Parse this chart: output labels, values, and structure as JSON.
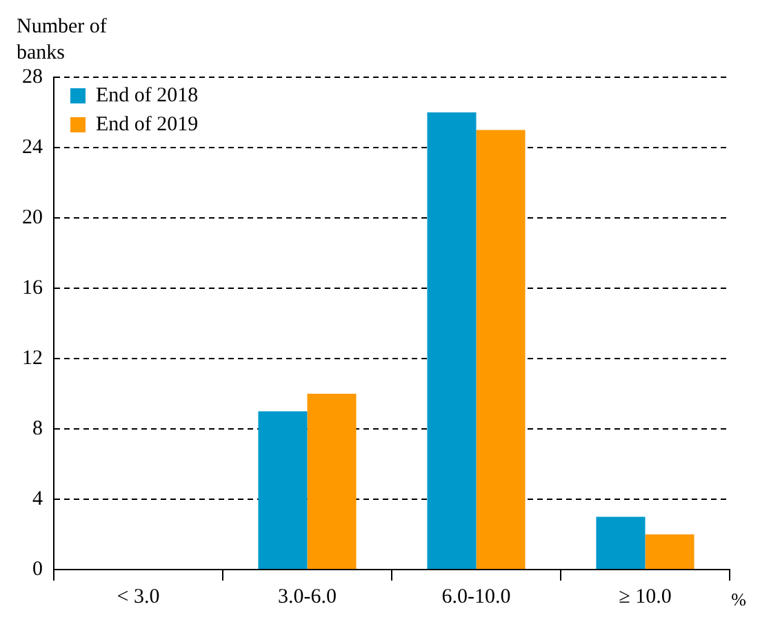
{
  "chart_data": {
    "type": "bar",
    "ylabel": "Number of\nbanks",
    "xlabel": "%",
    "categories": [
      "< 3.0",
      "3.0-6.0",
      "6.0-10.0",
      "≥ 10.0"
    ],
    "series": [
      {
        "name": "End of 2018",
        "color": "#0099cc",
        "values": [
          0,
          9,
          26,
          3
        ]
      },
      {
        "name": "End of 2019",
        "color": "#ff9900",
        "values": [
          0,
          10,
          25,
          2
        ]
      }
    ],
    "ylim": [
      0,
      28
    ],
    "yticks": [
      0,
      4,
      8,
      12,
      16,
      20,
      24,
      28
    ],
    "grid": "y",
    "legend": "top left"
  }
}
